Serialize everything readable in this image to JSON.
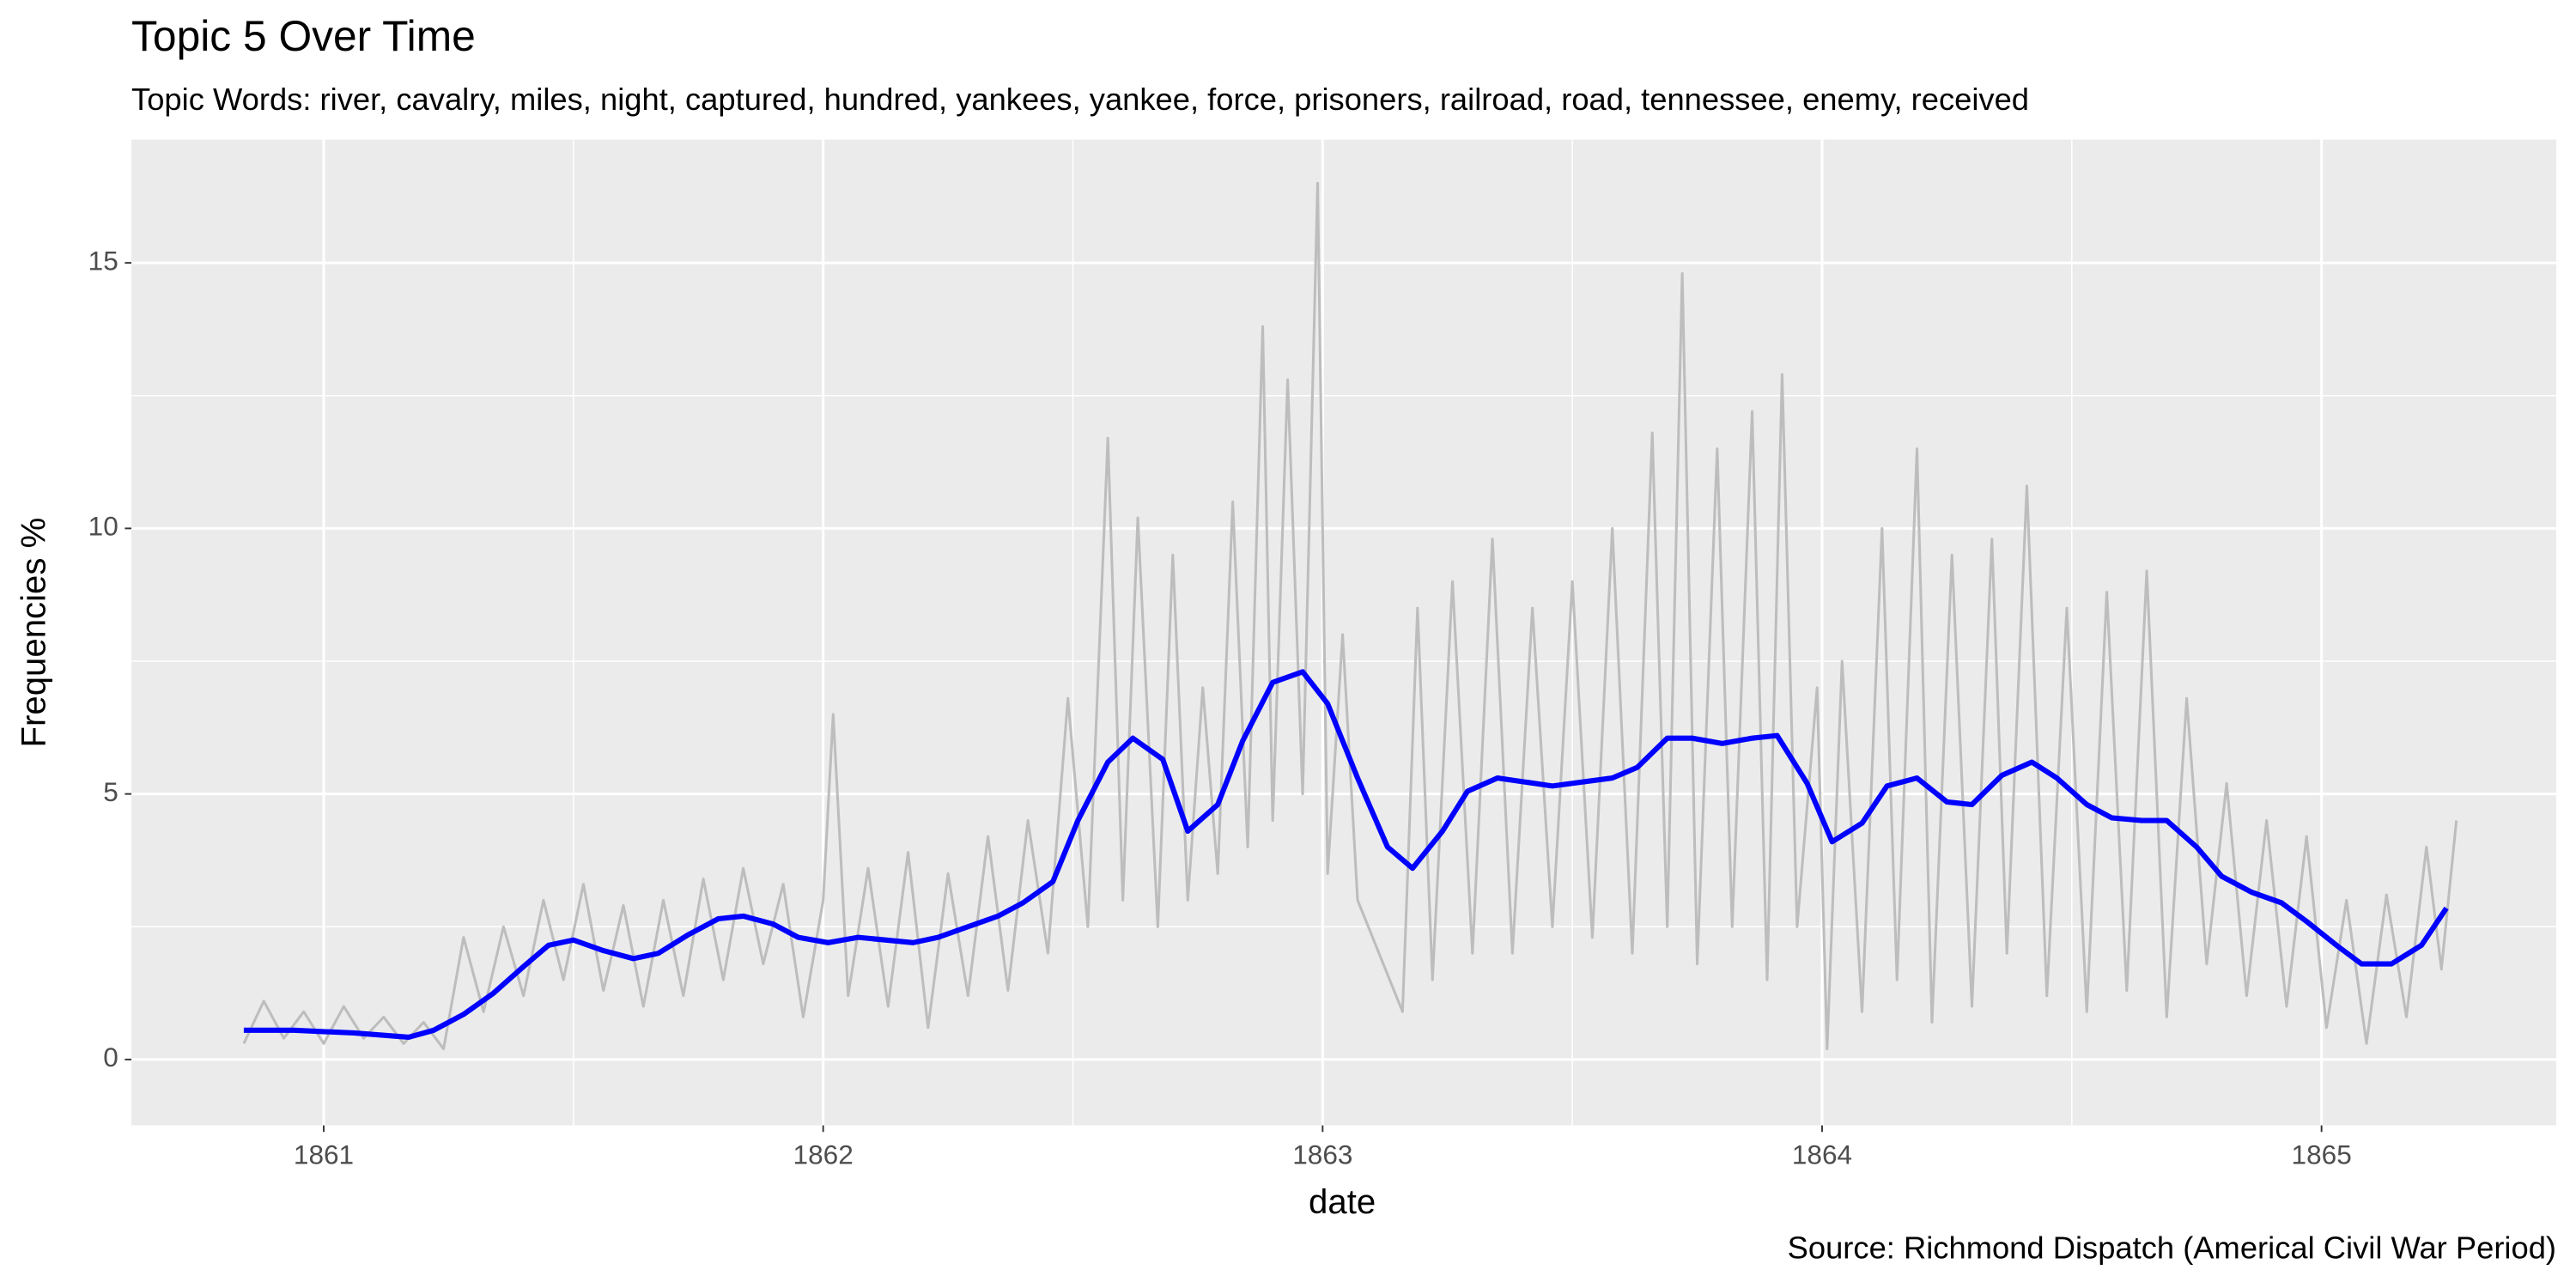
{
  "chart_data": {
    "type": "line",
    "title": "Topic 5 Over Time",
    "subtitle": "Topic Words: river, cavalry, miles, night, captured, hundred, yankees, yankee, force, prisoners, railroad, road, tennessee, enemy, received",
    "x_label": "date",
    "y_label": "Frequencies %",
    "caption": "Source: Richmond Dispatch (Americal Civil War Period)",
    "xlim": [
      1860.615,
      1865.47
    ],
    "xticks": [
      1861,
      1862,
      1863,
      1864,
      1865
    ],
    "ylim": [
      -1.24,
      17.32
    ],
    "yticks": [
      0,
      5,
      10,
      15
    ],
    "grid": true,
    "series": [
      {
        "color": "#bdbdbd",
        "x": [
          1860.84,
          1860.88,
          1860.92,
          1860.96,
          1861.0,
          1861.04,
          1861.08,
          1861.12,
          1861.16,
          1861.2,
          1861.24,
          1861.28,
          1861.32,
          1861.36,
          1861.4,
          1861.44,
          1861.48,
          1861.52,
          1861.56,
          1861.6,
          1861.64,
          1861.68,
          1861.72,
          1861.76,
          1861.8,
          1861.84,
          1861.88,
          1861.92,
          1861.96,
          1862.0,
          1862.02,
          1862.05,
          1862.09,
          1862.13,
          1862.17,
          1862.21,
          1862.25,
          1862.29,
          1862.33,
          1862.37,
          1862.41,
          1862.45,
          1862.49,
          1862.53,
          1862.57,
          1862.6,
          1862.63,
          1862.67,
          1862.7,
          1862.73,
          1862.76,
          1862.79,
          1862.82,
          1862.85,
          1862.88,
          1862.9,
          1862.93,
          1862.96,
          1862.99,
          1863.01,
          1863.04,
          1863.07,
          1863.16,
          1863.19,
          1863.22,
          1863.26,
          1863.3,
          1863.34,
          1863.38,
          1863.42,
          1863.46,
          1863.5,
          1863.54,
          1863.58,
          1863.62,
          1863.66,
          1863.69,
          1863.72,
          1863.75,
          1863.79,
          1863.82,
          1863.86,
          1863.89,
          1863.92,
          1863.95,
          1863.99,
          1864.01,
          1864.04,
          1864.08,
          1864.12,
          1864.15,
          1864.19,
          1864.22,
          1864.26,
          1864.3,
          1864.34,
          1864.37,
          1864.41,
          1864.45,
          1864.49,
          1864.53,
          1864.57,
          1864.61,
          1864.65,
          1864.69,
          1864.73,
          1864.77,
          1864.81,
          1864.85,
          1864.89,
          1864.93,
          1864.97,
          1865.01,
          1865.05,
          1865.09,
          1865.13,
          1865.17,
          1865.21,
          1865.24,
          1865.27
        ],
        "values": [
          0.3,
          1.1,
          0.4,
          0.9,
          0.3,
          1.0,
          0.4,
          0.8,
          0.3,
          0.7,
          0.2,
          2.3,
          0.9,
          2.5,
          1.2,
          3.0,
          1.5,
          3.3,
          1.3,
          2.9,
          1.0,
          3.0,
          1.2,
          3.4,
          1.5,
          3.6,
          1.8,
          3.3,
          0.8,
          3.0,
          6.5,
          1.2,
          3.6,
          1.0,
          3.9,
          0.6,
          3.5,
          1.2,
          4.2,
          1.3,
          4.5,
          2.0,
          6.8,
          2.5,
          11.7,
          3.0,
          10.2,
          2.5,
          9.5,
          3.0,
          7.0,
          3.5,
          10.5,
          4.0,
          13.8,
          4.5,
          12.8,
          5.0,
          16.5,
          3.5,
          8.0,
          3.0,
          0.9,
          8.5,
          1.5,
          9.0,
          2.0,
          9.8,
          2.0,
          8.5,
          2.5,
          9.0,
          2.3,
          10.0,
          2.0,
          11.8,
          2.5,
          14.8,
          1.8,
          11.5,
          2.5,
          12.2,
          1.5,
          12.9,
          2.5,
          7.0,
          0.2,
          7.5,
          0.9,
          10.0,
          1.5,
          11.5,
          0.7,
          9.5,
          1.0,
          9.8,
          2.0,
          10.8,
          1.2,
          8.5,
          0.9,
          8.8,
          1.3,
          9.2,
          0.8,
          6.8,
          1.8,
          5.2,
          1.2,
          4.5,
          1.0,
          4.2,
          0.6,
          3.0,
          0.3,
          3.1,
          0.8,
          4.0,
          1.7,
          4.5
        ]
      },
      {
        "color": "#0000ff",
        "x": [
          1860.84,
          1860.94,
          1861.06,
          1861.17,
          1861.22,
          1861.28,
          1861.34,
          1861.4,
          1861.45,
          1861.5,
          1861.56,
          1861.62,
          1861.67,
          1861.73,
          1861.79,
          1861.84,
          1861.9,
          1861.95,
          1862.01,
          1862.07,
          1862.18,
          1862.23,
          1862.29,
          1862.35,
          1862.4,
          1862.46,
          1862.51,
          1862.57,
          1862.62,
          1862.68,
          1862.73,
          1862.79,
          1862.84,
          1862.9,
          1862.96,
          1863.01,
          1863.07,
          1863.13,
          1863.18,
          1863.24,
          1863.29,
          1863.35,
          1863.46,
          1863.58,
          1863.63,
          1863.69,
          1863.74,
          1863.8,
          1863.86,
          1863.91,
          1863.97,
          1864.02,
          1864.08,
          1864.13,
          1864.19,
          1864.25,
          1864.3,
          1864.36,
          1864.42,
          1864.47,
          1864.53,
          1864.58,
          1864.64,
          1864.69,
          1864.75,
          1864.8,
          1864.86,
          1864.92,
          1864.97,
          1865.03,
          1865.08,
          1865.14,
          1865.2,
          1865.25
        ],
        "values": [
          0.55,
          0.55,
          0.5,
          0.42,
          0.55,
          0.85,
          1.25,
          1.75,
          2.15,
          2.25,
          2.05,
          1.9,
          2.0,
          2.35,
          2.65,
          2.7,
          2.55,
          2.3,
          2.2,
          2.3,
          2.2,
          2.3,
          2.5,
          2.7,
          2.95,
          3.35,
          4.5,
          5.6,
          6.05,
          5.65,
          4.3,
          4.8,
          6.0,
          7.1,
          7.3,
          6.7,
          5.3,
          4.0,
          3.6,
          4.3,
          5.05,
          5.3,
          5.15,
          5.3,
          5.5,
          6.05,
          6.05,
          5.95,
          6.05,
          6.1,
          5.2,
          4.1,
          4.45,
          5.15,
          5.3,
          4.85,
          4.8,
          5.35,
          5.6,
          5.3,
          4.8,
          4.55,
          4.5,
          4.5,
          4.0,
          3.45,
          3.15,
          2.95,
          2.6,
          2.15,
          1.8,
          1.8,
          2.15,
          2.85
        ]
      }
    ]
  }
}
